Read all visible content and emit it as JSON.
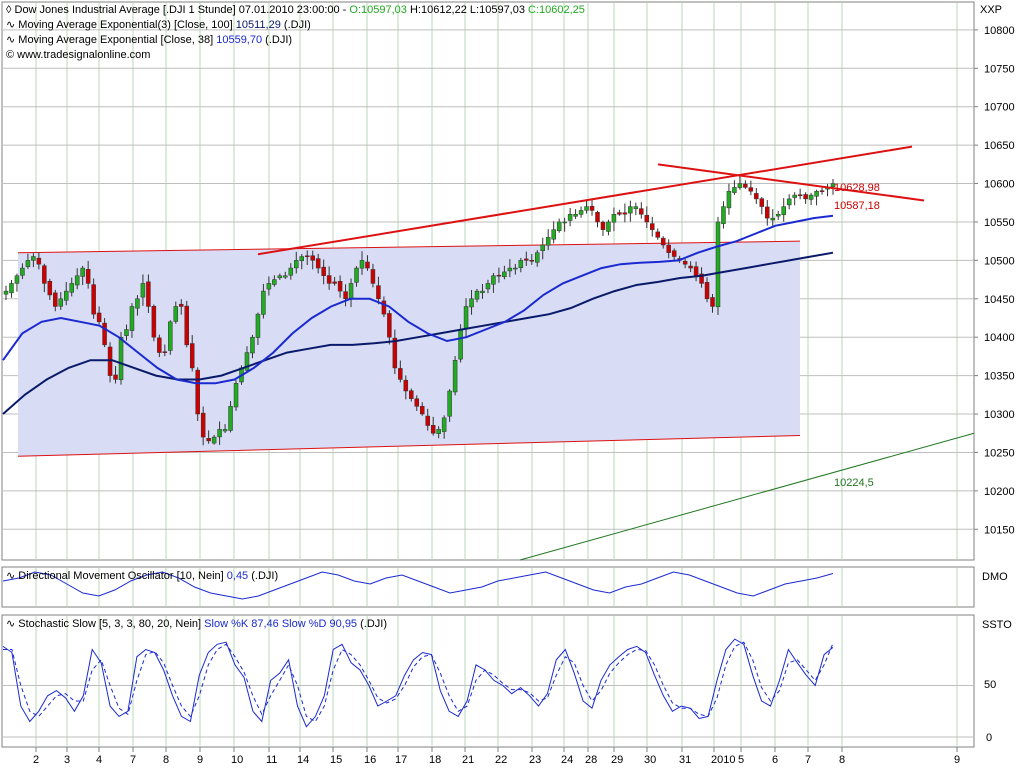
{
  "header": {
    "symbol_line": {
      "text": "Dow Jones Industrial Average [.DJI  1 Stunde] 07.01.2010 23:00:00 - ",
      "open": "O:10597,03",
      "high": "H:10612,22",
      "low": "L:10597,03",
      "close": "C:10602,25"
    },
    "ema100_line": {
      "text": "Moving Average Exponential(3) [Close, 100]",
      "value": "10511,29",
      "suffix": "(.DJI)"
    },
    "ema38_line": {
      "text": "Moving Average Exponential [Close, 38]",
      "value": "10559,70",
      "suffix": "(.DJI)"
    },
    "copyright": "© www.tradesignalonline.com",
    "corner": "XXP"
  },
  "panels": {
    "dmo": {
      "title": "Directional Movement Oscillator [10, Nein]",
      "value": "0,45",
      "suffix": "(.DJI)",
      "tag": "DMO"
    },
    "ssto": {
      "title": "Stochastic Slow [5, 3, 3, 80, 20, Nein]",
      "k_label": "Slow %K 87,46",
      "d_label": "Slow %D 90,95",
      "suffix": "(.DJI)",
      "tag": "SSTO"
    }
  },
  "annotations": {
    "upper": "10628,98",
    "lower": "10587,18",
    "green": "10224,5"
  },
  "colors": {
    "up": "#22aa22",
    "down": "#cc0000",
    "ema38": "#1a2ad0",
    "ema100": "#0a1a6a",
    "trend": "#dd1111",
    "support": "#227722",
    "channel": "#d8dcf4"
  },
  "chart_data": [
    {
      "type": "candlestick",
      "title": "Dow Jones Industrial Average [.DJI  1 Stunde]",
      "ylim": [
        10110,
        10835
      ],
      "yticks": [
        10150,
        10200,
        10250,
        10300,
        10350,
        10400,
        10450,
        10500,
        10550,
        10600,
        10650,
        10700,
        10750,
        10800
      ],
      "ytick_labels": [
        "10150",
        "10200",
        "10250",
        "10300",
        "10350",
        "10400",
        "10450",
        "10500",
        "10550",
        "10600",
        "10650",
        "10700",
        "10750",
        "10800"
      ],
      "x_date_labels": [
        "2",
        "3",
        "4",
        "7",
        "8",
        "9",
        "10",
        "11",
        "14",
        "15",
        "16",
        "17",
        "18",
        "21",
        "22",
        "23",
        "24",
        "28",
        "29",
        "30",
        "31",
        "2010",
        "5",
        "6",
        "7",
        "8",
        "9"
      ],
      "close_path": [
        10460,
        10470,
        10480,
        10490,
        10500,
        10505,
        10495,
        10470,
        10455,
        10440,
        10450,
        10460,
        10470,
        10480,
        10490,
        10470,
        10430,
        10420,
        10390,
        10350,
        10345,
        10400,
        10410,
        10440,
        10450,
        10470,
        10440,
        10400,
        10380,
        10380,
        10420,
        10440,
        10440,
        10390,
        10360,
        10300,
        10270,
        10265,
        10270,
        10280,
        10280,
        10310,
        10340,
        10360,
        10380,
        10400,
        10430,
        10460,
        10470,
        10475,
        10480,
        10480,
        10490,
        10500,
        10505,
        10505,
        10500,
        10490,
        10480,
        10470,
        10470,
        10460,
        10450,
        10470,
        10490,
        10500,
        10490,
        10470,
        10450,
        10430,
        10400,
        10360,
        10345,
        10330,
        10320,
        10310,
        10300,
        10285,
        10275,
        10280,
        10295,
        10330,
        10370,
        10410,
        10440,
        10450,
        10460,
        10460,
        10470,
        10480,
        10480,
        10485,
        10490,
        10490,
        10500,
        10500,
        10500,
        10510,
        10520,
        10530,
        10540,
        10550,
        10550,
        10560,
        10560,
        10565,
        10570,
        10565,
        10550,
        10540,
        10550,
        10560,
        10560,
        10560,
        10570,
        10570,
        10560,
        10550,
        10540,
        10530,
        10520,
        10510,
        10505,
        10500,
        10495,
        10490,
        10480,
        10470,
        10450,
        10440,
        10550,
        10570,
        10590,
        10595,
        10600,
        10595,
        10590,
        10580,
        10570,
        10555,
        10555,
        10560,
        10570,
        10580,
        10585,
        10585,
        10580,
        10585,
        10590,
        10590,
        10595,
        10600
      ],
      "ema38": [
        10370,
        10405,
        10420,
        10425,
        10420,
        10415,
        10400,
        10380,
        10360,
        10345,
        10340,
        10340,
        10345,
        10360,
        10380,
        10405,
        10425,
        10440,
        10450,
        10450,
        10440,
        10420,
        10405,
        10395,
        10400,
        10410,
        10420,
        10435,
        10455,
        10470,
        10480,
        10490,
        10495,
        10497,
        10498,
        10500,
        10510,
        10518,
        10525,
        10535,
        10545,
        10550,
        10555,
        10558
      ],
      "ema100": [
        10300,
        10325,
        10345,
        10360,
        10370,
        10370,
        10360,
        10350,
        10345,
        10345,
        10350,
        10360,
        10370,
        10380,
        10385,
        10390,
        10390,
        10392,
        10395,
        10400,
        10405,
        10410,
        10415,
        10420,
        10425,
        10430,
        10438,
        10450,
        10460,
        10468,
        10472,
        10477,
        10480,
        10485,
        10490,
        10495,
        10500,
        10505,
        10510
      ],
      "channel": {
        "upper": [
          10510,
          10525
        ],
        "lower": [
          10245,
          10272
        ]
      },
      "trendlines": [
        {
          "from": 10508,
          "to": 10648,
          "color": "red"
        },
        {
          "from": 10625,
          "to": 10578,
          "color": "red"
        },
        {
          "from": 10110,
          "to": 10275,
          "color": "green"
        }
      ],
      "annotation_levels": [
        10628.98,
        10587.18,
        10224.5
      ]
    },
    {
      "type": "line",
      "title": "Directional Movement Oscillator [10, Nein]",
      "series": [
        {
          "name": "DMO",
          "values": [
            0.2,
            0.3,
            0.5,
            0.4,
            0.1,
            -0.2,
            -0.3,
            -0.1,
            0.2,
            0.4,
            0.5,
            0.3,
            0.0,
            -0.2,
            -0.3,
            -0.4,
            -0.3,
            -0.1,
            0.1,
            0.3,
            0.5,
            0.4,
            0.2,
            0.1,
            0.3,
            0.4,
            0.2,
            0.0,
            -0.2,
            -0.1,
            0.0,
            0.2,
            0.3,
            0.4,
            0.5,
            0.3,
            0.1,
            -0.1,
            -0.2,
            0.0,
            0.1,
            0.3,
            0.5,
            0.4,
            0.2,
            0.0,
            -0.2,
            -0.3,
            -0.1,
            0.1,
            0.2,
            0.3,
            0.45
          ]
        }
      ]
    },
    {
      "type": "line",
      "title": "Stochastic Slow [5, 3, 3, 80, 20, Nein]",
      "ylim": [
        0,
        100
      ],
      "yticks": [
        0,
        50
      ],
      "series": [
        {
          "name": "Slow %K 87,46",
          "values": [
            88,
            82,
            30,
            15,
            25,
            40,
            45,
            38,
            25,
            40,
            85,
            72,
            30,
            20,
            25,
            78,
            85,
            82,
            65,
            40,
            20,
            15,
            60,
            82,
            90,
            92,
            70,
            58,
            25,
            15,
            55,
            62,
            75,
            30,
            10,
            20,
            40,
            85,
            90,
            72,
            65,
            50,
            30,
            35,
            40,
            60,
            75,
            82,
            80,
            45,
            25,
            20,
            35,
            70,
            65,
            55,
            50,
            42,
            48,
            40,
            30,
            42,
            75,
            85,
            62,
            35,
            28,
            55,
            70,
            78,
            85,
            88,
            82,
            60,
            40,
            25,
            30,
            28,
            18,
            20,
            55,
            85,
            95,
            90,
            60,
            35,
            30,
            55,
            85,
            72,
            60,
            50,
            80,
            87
          ]
        },
        {
          "name": "Slow %D 90,95",
          "values": [
            85,
            85,
            50,
            25,
            20,
            30,
            40,
            42,
            35,
            35,
            65,
            75,
            50,
            28,
            22,
            55,
            80,
            83,
            72,
            50,
            30,
            20,
            40,
            70,
            85,
            90,
            78,
            63,
            40,
            22,
            40,
            55,
            70,
            50,
            20,
            15,
            30,
            65,
            85,
            80,
            70,
            55,
            38,
            33,
            37,
            50,
            68,
            78,
            80,
            62,
            40,
            25,
            30,
            55,
            65,
            60,
            52,
            46,
            46,
            43,
            35,
            38,
            60,
            78,
            72,
            50,
            35,
            45,
            62,
            72,
            80,
            85,
            84,
            70,
            50,
            33,
            28,
            28,
            22,
            20,
            38,
            70,
            88,
            92,
            75,
            48,
            35,
            45,
            72,
            75,
            65,
            55,
            70,
            90.95
          ]
        }
      ]
    }
  ]
}
